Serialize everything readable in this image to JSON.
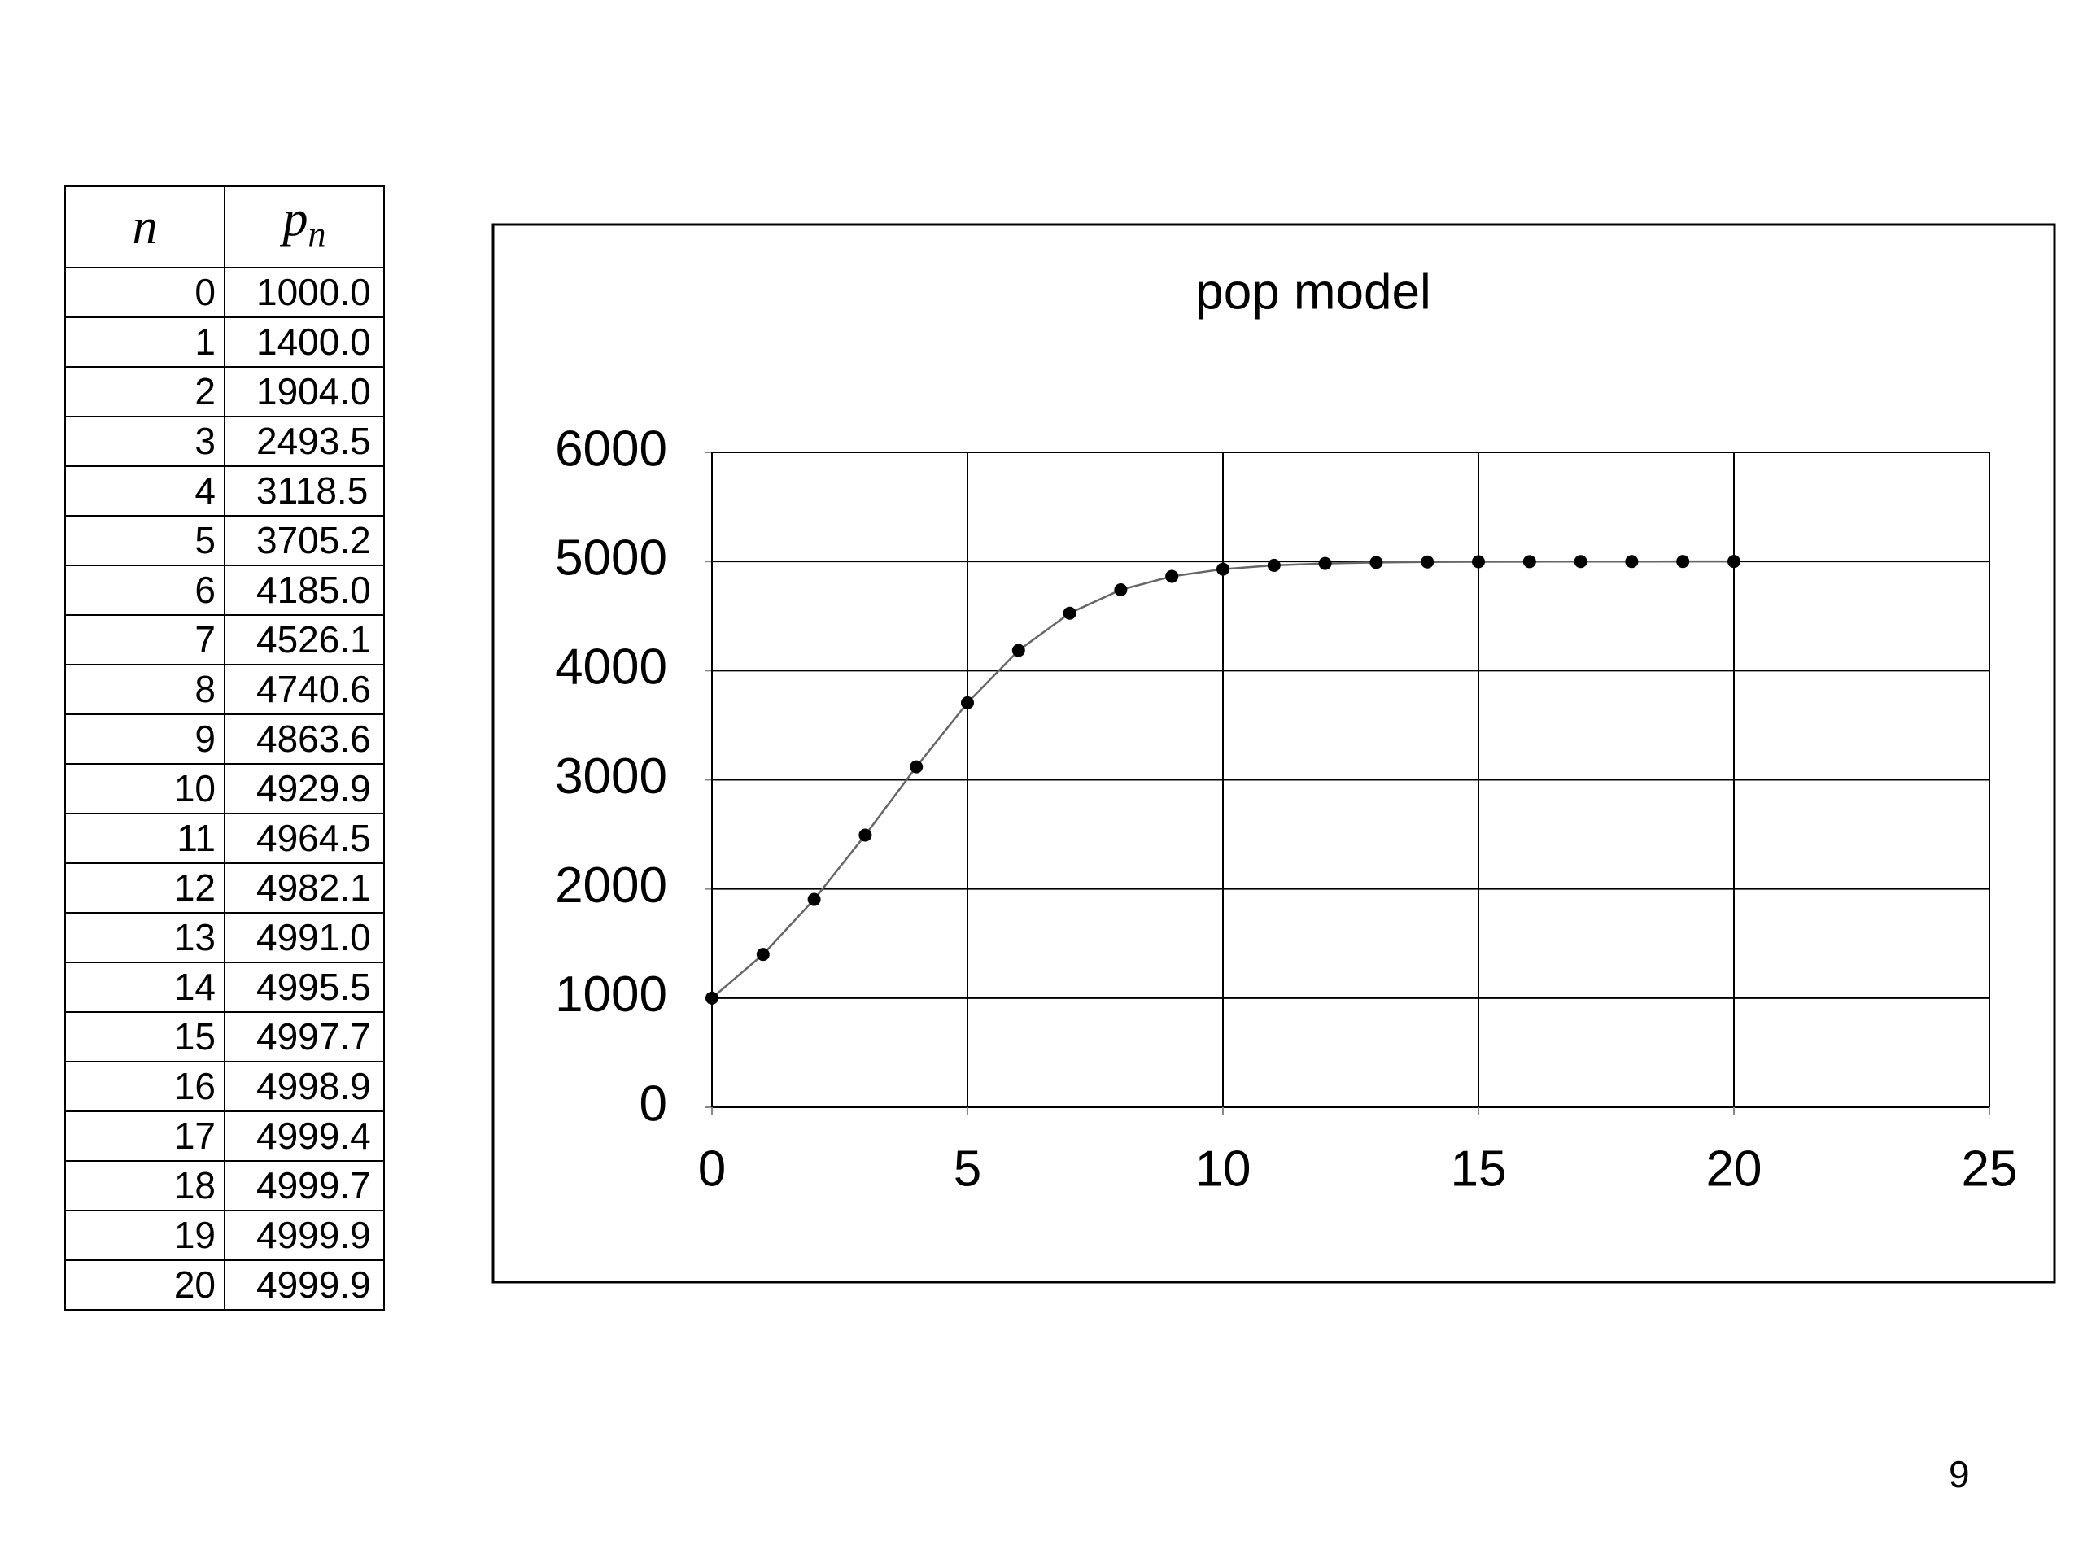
{
  "table": {
    "header": {
      "n": "n",
      "p": "p",
      "p_sub": "n"
    },
    "rows": [
      [
        "0",
        "1000.0"
      ],
      [
        "1",
        "1400.0"
      ],
      [
        "2",
        "1904.0"
      ],
      [
        "3",
        "2493.5"
      ],
      [
        "4",
        "3118.5"
      ],
      [
        "5",
        "3705.2"
      ],
      [
        "6",
        "4185.0"
      ],
      [
        "7",
        "4526.1"
      ],
      [
        "8",
        "4740.6"
      ],
      [
        "9",
        "4863.6"
      ],
      [
        "10",
        "4929.9"
      ],
      [
        "11",
        "4964.5"
      ],
      [
        "12",
        "4982.1"
      ],
      [
        "13",
        "4991.0"
      ],
      [
        "14",
        "4995.5"
      ],
      [
        "15",
        "4997.7"
      ],
      [
        "16",
        "4998.9"
      ],
      [
        "17",
        "4999.4"
      ],
      [
        "18",
        "4999.7"
      ],
      [
        "19",
        "4999.9"
      ],
      [
        "20",
        "4999.9"
      ]
    ]
  },
  "chart_data": {
    "type": "line",
    "title": "pop model",
    "x": [
      0,
      1,
      2,
      3,
      4,
      5,
      6,
      7,
      8,
      9,
      10,
      11,
      12,
      13,
      14,
      15,
      16,
      17,
      18,
      19,
      20
    ],
    "series": [
      {
        "color": "#000000",
        "values": [
          1000.0,
          1400.0,
          1904.0,
          2493.5,
          3118.5,
          3705.2,
          4185.0,
          4526.1,
          4740.6,
          4863.6,
          4929.9,
          4964.5,
          4982.1,
          4991.0,
          4995.5,
          4997.7,
          4998.9,
          4999.4,
          4999.7,
          4999.9,
          4999.9
        ]
      }
    ],
    "xlim": [
      0,
      25
    ],
    "xticks": [
      0,
      5,
      10,
      15,
      20,
      25
    ],
    "ylim": [
      0,
      6000
    ],
    "yticks": [
      0,
      1000,
      2000,
      3000,
      4000,
      5000,
      6000
    ],
    "grid": true
  },
  "page_number": "9"
}
